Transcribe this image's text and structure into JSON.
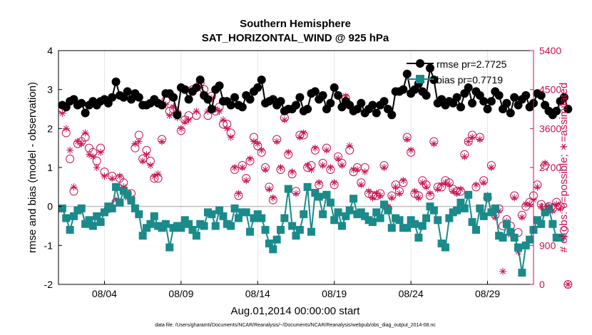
{
  "figure": {
    "title_line1": "Southern Hemisphere",
    "title_line2": "SAT_HORIZONTAL_WIND @ 925 hPa",
    "xlabel": "Aug.01,2014 00:00:00 start",
    "ylabel_left": "rmse and bias (model - observation)",
    "ylabel_right": "# of obs: o=possible; ∗=assimilated",
    "footnote": "data file: /Users/gharamti/Documents/NCAR/Reanalysis/~/Documents/NCAR/Reanalysis/webpub/obs_diag_output_2014-08.nc",
    "legend": {
      "rmse": "rmse pr=2.7725",
      "bias": "bias pr=0.7719"
    },
    "colors": {
      "rmse": "#000000",
      "bias": "#1a8a8a",
      "obs": "#c8104f",
      "zero_line": "#bfbfbf",
      "grid": "#e6e6e6"
    }
  },
  "chart_data": {
    "type": "line",
    "x_ticks": [
      "08/04",
      "08/09",
      "08/14",
      "08/19",
      "08/24",
      "08/29"
    ],
    "x_tick_days": [
      4,
      9,
      14,
      19,
      24,
      29
    ],
    "xlim_days": [
      1,
      32
    ],
    "ylim_left": [
      -2,
      4
    ],
    "y_ticks_left": [
      "-2",
      "-1",
      "0",
      "1",
      "2",
      "3",
      "4"
    ],
    "ylim_right": [
      0,
      5400
    ],
    "y_ticks_right": [
      "0",
      "900",
      "1800",
      "2700",
      "3600",
      "4500",
      "5400"
    ],
    "grid": "vertical",
    "legend_position": "top-right",
    "series": [
      {
        "name": "rmse pr=2.7725",
        "axis": "left",
        "marker": "filled-circle",
        "x_start_day": 1.25,
        "x_step_day": 0.25,
        "values": [
          2.6,
          2.55,
          2.7,
          2.75,
          2.6,
          2.65,
          2.4,
          2.6,
          2.7,
          2.6,
          2.7,
          2.75,
          2.65,
          2.8,
          3.2,
          2.85,
          2.8,
          2.95,
          2.75,
          2.9,
          2.8,
          2.6,
          2.6,
          2.65,
          2.75,
          2.65,
          2.6,
          2.9,
          2.9,
          2.8,
          2.35,
          3.05,
          3.0,
          2.75,
          2.95,
          3.05,
          3.25,
          2.85,
          2.75,
          2.5,
          3.0,
          3.1,
          2.7,
          2.7,
          2.6,
          2.8,
          2.6,
          2.55,
          2.85,
          2.75,
          2.95,
          3.05,
          3.25,
          2.65,
          2.7,
          2.75,
          2.6,
          2.7,
          2.45,
          2.5,
          2.5,
          2.6,
          2.8,
          2.45,
          2.5,
          2.9,
          2.95,
          2.75,
          2.85,
          2.5,
          2.65,
          3.05,
          2.85,
          2.55,
          2.7,
          2.6,
          2.45,
          2.5,
          2.65,
          2.4,
          2.5,
          2.6,
          2.4,
          2.6,
          2.7,
          2.5,
          2.35,
          2.95,
          2.95,
          3.0,
          3.4,
          2.9,
          3.0,
          3.15,
          2.95,
          2.85,
          3.55,
          3.25,
          2.65,
          2.75,
          2.6,
          2.7,
          2.65,
          2.8,
          2.55,
          2.9,
          3.05,
          2.65,
          2.95,
          2.85,
          2.7,
          2.5,
          2.7,
          2.95,
          2.85,
          2.5,
          2.65,
          2.4,
          2.8,
          2.6,
          2.75,
          2.85,
          2.55,
          2.65,
          2.9,
          2.85,
          2.6,
          2.45,
          2.35,
          2.45,
          2.7,
          2.8,
          2.5
        ]
      },
      {
        "name": "bias pr=0.7719",
        "axis": "left",
        "marker": "filled-square",
        "x_start_day": 1.25,
        "x_step_day": 0.25,
        "values": [
          -0.05,
          -0.3,
          -0.6,
          -0.25,
          -0.1,
          -0.05,
          -0.45,
          -0.35,
          -0.5,
          -0.25,
          -0.4,
          -0.15,
          0.0,
          -0.05,
          0.5,
          0.1,
          0.4,
          0.3,
          0.15,
          -0.05,
          -0.2,
          -0.75,
          -0.55,
          -0.45,
          -0.25,
          -0.5,
          -0.55,
          -0.45,
          -1.05,
          -0.55,
          -0.5,
          -0.55,
          -0.35,
          -0.45,
          -0.6,
          -0.75,
          -0.45,
          -0.5,
          -0.15,
          -0.2,
          -0.5,
          -0.1,
          -0.25,
          -0.45,
          -0.5,
          -0.05,
          -0.3,
          -0.15,
          -0.15,
          -0.65,
          -0.3,
          -0.2,
          -0.3,
          -0.6,
          -0.95,
          -1.1,
          -0.85,
          -0.6,
          -0.3,
          0.45,
          -0.5,
          -0.75,
          -0.6,
          -0.2,
          0.5,
          -0.65,
          0.35,
          0.25,
          -0.2,
          0.3,
          0.1,
          -0.35,
          -0.15,
          -0.5,
          -0.25,
          -0.1,
          0.2,
          -0.2,
          -0.15,
          -0.25,
          -0.35,
          -0.4,
          -0.15,
          -0.3,
          0.05,
          -0.1,
          -0.55,
          -0.3,
          -0.35,
          -0.55,
          -0.55,
          -0.35,
          -0.45,
          -0.8,
          -0.5,
          -0.3,
          0.0,
          -0.1,
          -0.35,
          -0.95,
          -1.05,
          -0.3,
          -0.15,
          -0.1,
          0.1,
          -0.05,
          0.3,
          -0.4,
          -0.6,
          -0.05,
          -0.25,
          0.25,
          -0.15,
          -0.05,
          -0.75,
          -0.8,
          -0.45,
          -0.65,
          -0.8,
          -1.05,
          -1.7,
          -1.0,
          -0.85,
          -0.6,
          -0.35,
          -0.45,
          -0.15,
          -0.05,
          -0.45,
          -0.8,
          -0.8
        ]
      },
      {
        "name": "possible",
        "axis": "right",
        "marker": "open-circle",
        "x_start_day": 1.25,
        "x_step_day": 0.25,
        "values": [
          4050,
          3500,
          2900,
          2150,
          3250,
          3300,
          3400,
          3150,
          3050,
          2850,
          3150,
          2600,
          1750,
          2500,
          1900,
          2450,
          2350,
          2100,
          2100,
          3150,
          3450,
          2900,
          3100,
          2850,
          2450,
          2450,
          3350,
          4250,
          4000,
          4050,
          3950,
          3550,
          3800,
          3900,
          4500,
          3900,
          4650,
          4500,
          3900,
          4350,
          4000,
          4100,
          3700,
          3700,
          3500,
          2650,
          2050,
          2750,
          2450,
          2850,
          3400,
          3200,
          3050,
          2700,
          2250,
          1950,
          3350,
          2650,
          3850,
          3000,
          2550,
          2150,
          3450,
          3450,
          2700,
          2750,
          3100,
          2300,
          2800,
          3150,
          2650,
          2300,
          2950,
          2800,
          4300,
          3100,
          2600,
          2700,
          2350,
          2700,
          2100,
          2050,
          2050,
          2100,
          2750,
          1750,
          2050,
          2300,
          2150,
          2350,
          3400,
          3050,
          2100,
          2050,
          2400,
          2300,
          2050,
          3300,
          2250,
          2250,
          2400,
          2350,
          2200,
          2150,
          2150,
          3000,
          3300,
          3450,
          2250,
          3400,
          2400,
          2000,
          2750,
          1600,
          1750,
          1350,
          1500,
          1350,
          2050,
          1200,
          1600,
          1800,
          1900,
          2050,
          2300,
          1850,
          2750,
          1800,
          1750,
          1900,
          1800,
          1250,
          0
        ]
      },
      {
        "name": "assimilated",
        "axis": "right",
        "marker": "asterisk",
        "x_start_day": 1.25,
        "x_step_day": 0.25,
        "values": [
          3950,
          3600,
          3100,
          2250,
          3300,
          3250,
          3500,
          3000,
          2950,
          2700,
          3050,
          2500,
          1800,
          2450,
          1950,
          2500,
          2250,
          2000,
          2000,
          3250,
          3300,
          2850,
          3000,
          2750,
          2500,
          2550,
          3300,
          4150,
          3900,
          4100,
          3850,
          3600,
          3750,
          3800,
          4500,
          4000,
          4550,
          4400,
          4000,
          4300,
          4050,
          4000,
          3800,
          3600,
          3400,
          2700,
          2100,
          2700,
          2400,
          2900,
          3300,
          3250,
          3100,
          2650,
          2200,
          2000,
          3300,
          2700,
          3800,
          3050,
          2600,
          2100,
          3400,
          3500,
          2750,
          2650,
          3150,
          2350,
          2750,
          3100,
          2700,
          2350,
          2900,
          2750,
          4350,
          3200,
          2650,
          2650,
          2300,
          2600,
          2150,
          2000,
          2100,
          2050,
          2700,
          1800,
          2000,
          2250,
          2100,
          2400,
          3350,
          3100,
          2150,
          2000,
          2350,
          2250,
          2100,
          3250,
          2200,
          2300,
          2350,
          2300,
          2150,
          2100,
          2200,
          2950,
          3300,
          3400,
          2300,
          3350,
          2350,
          2050,
          2700,
          1550,
          1700,
          300,
          1450,
          1150,
          2000,
          750,
          1550,
          1850,
          1850,
          1950,
          2250,
          1800,
          2800,
          1700,
          1700,
          1850,
          1750,
          1100,
          0
        ]
      }
    ]
  }
}
